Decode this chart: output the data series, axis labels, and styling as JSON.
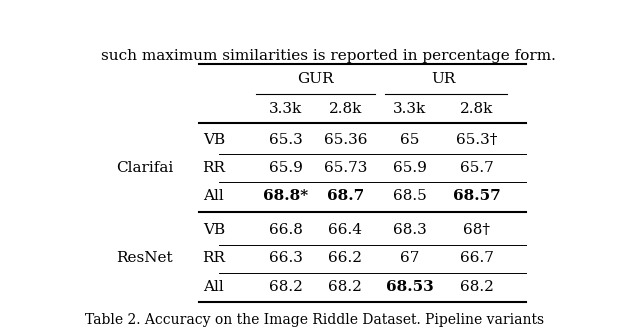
{
  "header_text": "such maximum similarities is reported in percentage form.",
  "caption": "Table 2. Accuracy on the Image Riddle Dataset. Pipeline variants",
  "col_headers": [
    "3.3k",
    "2.8k",
    "3.3k",
    "2.8k"
  ],
  "row_groups": [
    {
      "group_label": "Clarifai",
      "rows": [
        {
          "label": "VB",
          "values": [
            "65.3",
            "65.36",
            "65",
            "65.3†"
          ],
          "bold": [
            false,
            false,
            false,
            false
          ]
        },
        {
          "label": "RR",
          "values": [
            "65.9",
            "65.73",
            "65.9",
            "65.7"
          ],
          "bold": [
            false,
            false,
            false,
            false
          ]
        },
        {
          "label": "All",
          "values": [
            "68.8*",
            "68.7",
            "68.5",
            "68.57"
          ],
          "bold": [
            true,
            true,
            false,
            true
          ]
        }
      ]
    },
    {
      "group_label": "ResNet",
      "rows": [
        {
          "label": "VB",
          "values": [
            "66.8",
            "66.4",
            "68.3",
            "68†"
          ],
          "bold": [
            false,
            false,
            false,
            false
          ]
        },
        {
          "label": "RR",
          "values": [
            "66.3",
            "66.2",
            "67",
            "66.7"
          ],
          "bold": [
            false,
            false,
            false,
            false
          ]
        },
        {
          "label": "All",
          "values": [
            "68.2",
            "68.2",
            "68.53",
            "68.2"
          ],
          "bold": [
            false,
            false,
            true,
            false
          ]
        }
      ]
    }
  ],
  "bg_color": "white",
  "font_size": 11,
  "font_family": "serif"
}
